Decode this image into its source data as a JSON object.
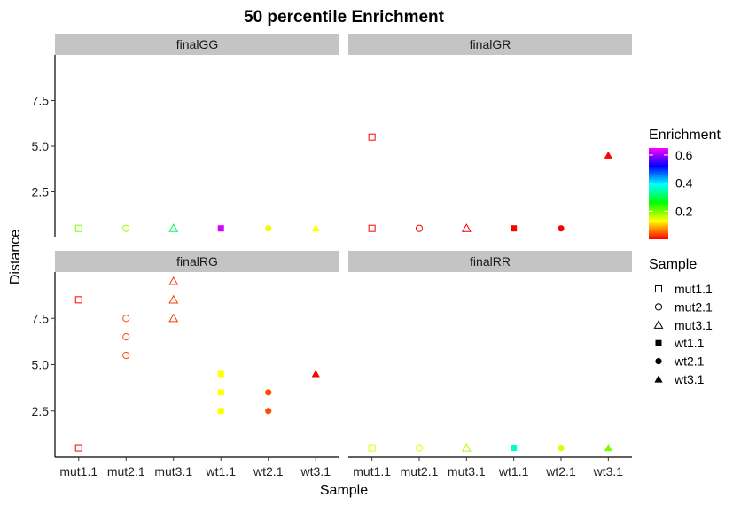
{
  "chart_data": {
    "type": "scatter",
    "title": "50 percentile Enrichment",
    "xlabel": "Sample",
    "ylabel": "Distance",
    "categories": [
      "mut1.1",
      "mut2.1",
      "mut3.1",
      "wt1.1",
      "wt2.1",
      "wt3.1"
    ],
    "y_ticks": [
      "2.5",
      "5.0",
      "7.5"
    ],
    "ylim": [
      0,
      10
    ],
    "grid": false,
    "facets": [
      {
        "name": "finalGG",
        "points": [
          {
            "sample": "mut1.1",
            "distance": 0.5,
            "enrichment": 0.2
          },
          {
            "sample": "mut2.1",
            "distance": 0.5,
            "enrichment": 0.18
          },
          {
            "sample": "mut3.1",
            "distance": 0.5,
            "enrichment": 0.3
          },
          {
            "sample": "wt1.1",
            "distance": 0.5,
            "enrichment": 0.63
          },
          {
            "sample": "wt2.1",
            "distance": 0.5,
            "enrichment": 0.14
          },
          {
            "sample": "wt3.1",
            "distance": 0.5,
            "enrichment": 0.13
          }
        ]
      },
      {
        "name": "finalGR",
        "points": [
          {
            "sample": "mut1.1",
            "distance": 5.5,
            "enrichment": 0.0
          },
          {
            "sample": "mut1.1",
            "distance": 0.5,
            "enrichment": 0.0
          },
          {
            "sample": "mut2.1",
            "distance": 0.5,
            "enrichment": 0.0
          },
          {
            "sample": "mut3.1",
            "distance": 0.5,
            "enrichment": 0.0
          },
          {
            "sample": "wt1.1",
            "distance": 0.5,
            "enrichment": 0.0
          },
          {
            "sample": "wt2.1",
            "distance": 0.5,
            "enrichment": 0.0
          },
          {
            "sample": "wt3.1",
            "distance": 4.5,
            "enrichment": 0.0
          }
        ]
      },
      {
        "name": "finalRG",
        "points": [
          {
            "sample": "mut1.1",
            "distance": 8.5,
            "enrichment": 0.0
          },
          {
            "sample": "mut1.1",
            "distance": 0.5,
            "enrichment": 0.0
          },
          {
            "sample": "mut2.1",
            "distance": 7.5,
            "enrichment": 0.04
          },
          {
            "sample": "mut2.1",
            "distance": 6.5,
            "enrichment": 0.04
          },
          {
            "sample": "mut2.1",
            "distance": 5.5,
            "enrichment": 0.04
          },
          {
            "sample": "mut3.1",
            "distance": 9.5,
            "enrichment": 0.03
          },
          {
            "sample": "mut3.1",
            "distance": 8.5,
            "enrichment": 0.03
          },
          {
            "sample": "mut3.1",
            "distance": 7.5,
            "enrichment": 0.03
          },
          {
            "sample": "wt1.1",
            "distance": 4.5,
            "enrichment": 0.13
          },
          {
            "sample": "wt1.1",
            "distance": 3.5,
            "enrichment": 0.13
          },
          {
            "sample": "wt1.1",
            "distance": 2.5,
            "enrichment": 0.13
          },
          {
            "sample": "wt2.1",
            "distance": 3.5,
            "enrichment": 0.04
          },
          {
            "sample": "wt2.1",
            "distance": 2.5,
            "enrichment": 0.04
          },
          {
            "sample": "wt3.1",
            "distance": 4.5,
            "enrichment": 0.0
          }
        ]
      },
      {
        "name": "finalRR",
        "points": [
          {
            "sample": "mut1.1",
            "distance": 0.5,
            "enrichment": 0.15
          },
          {
            "sample": "mut2.1",
            "distance": 0.5,
            "enrichment": 0.15
          },
          {
            "sample": "mut3.1",
            "distance": 0.5,
            "enrichment": 0.17
          },
          {
            "sample": "wt1.1",
            "distance": 0.5,
            "enrichment": 0.36
          },
          {
            "sample": "wt2.1",
            "distance": 0.5,
            "enrichment": 0.15
          },
          {
            "sample": "wt3.1",
            "distance": 0.5,
            "enrichment": 0.2
          }
        ]
      }
    ],
    "legend": {
      "placement": "right",
      "color_title": "Enrichment",
      "color_ticks": [
        {
          "value": 0.2,
          "label": "0.2"
        },
        {
          "value": 0.4,
          "label": "0.4"
        },
        {
          "value": 0.6,
          "label": "0.6"
        }
      ],
      "color_range": [
        0,
        0.65
      ],
      "shape_title": "Sample",
      "shape_items": [
        {
          "label": "mut1.1",
          "shape": "open-square"
        },
        {
          "label": "mut2.1",
          "shape": "open-circle"
        },
        {
          "label": "mut3.1",
          "shape": "open-triangle"
        },
        {
          "label": "wt1.1",
          "shape": "filled-square"
        },
        {
          "label": "wt2.1",
          "shape": "filled-circle"
        },
        {
          "label": "wt3.1",
          "shape": "filled-triangle"
        }
      ]
    },
    "colors": {
      "strip_background": "#c4c4c4",
      "axis": "#000000",
      "gradient": [
        "#ff0000",
        "#ffff00",
        "#00ff00",
        "#00ffff",
        "#0000ff",
        "#ff00ff"
      ]
    }
  }
}
